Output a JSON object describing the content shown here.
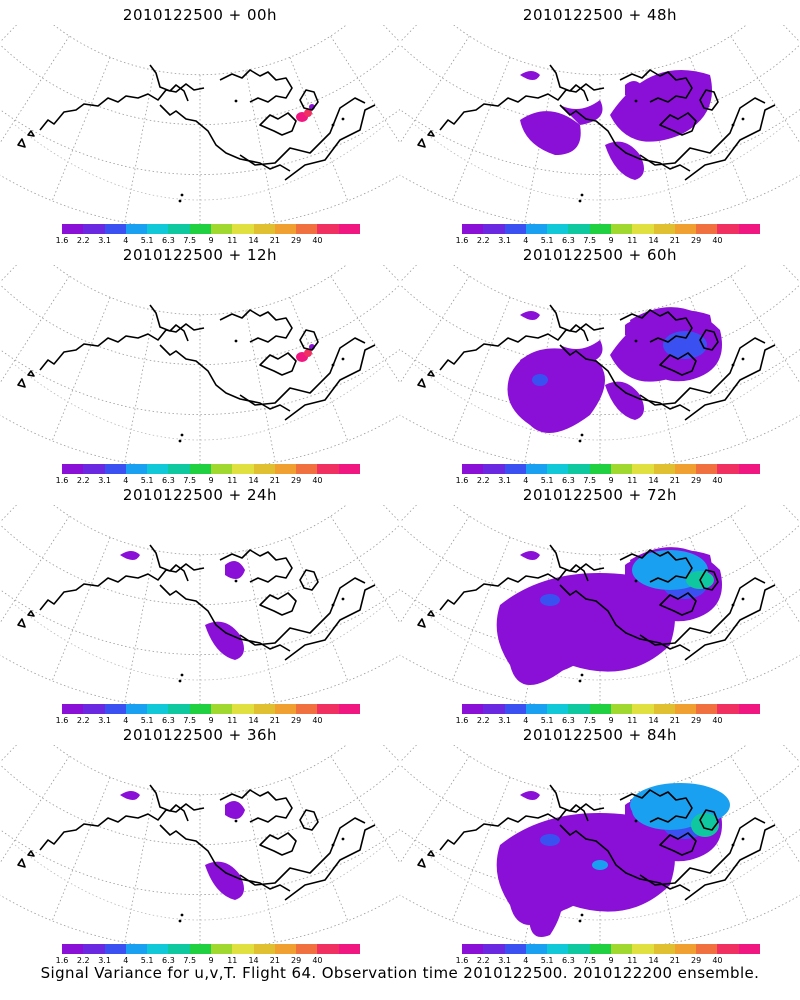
{
  "panels": [
    {
      "title": "2010122500 + 00h",
      "intensity": 0
    },
    {
      "title": "2010122500 + 48h",
      "intensity": 2
    },
    {
      "title": "2010122500 + 12h",
      "intensity": 0
    },
    {
      "title": "2010122500 + 60h",
      "intensity": 3
    },
    {
      "title": "2010122500 + 24h",
      "intensity": 1
    },
    {
      "title": "2010122500 + 72h",
      "intensity": 4
    },
    {
      "title": "2010122500 + 36h",
      "intensity": 1
    },
    {
      "title": "2010122500 + 84h",
      "intensity": 5
    }
  ],
  "colorbar": {
    "labels": [
      "1.6",
      "2.2",
      "3.1",
      "4",
      "5.1",
      "6.3",
      "7.5",
      "9",
      "11",
      "14",
      "21",
      "29",
      "40"
    ],
    "colors": [
      "#8a10d8",
      "#6a28e0",
      "#3a50f0",
      "#1aa0f0",
      "#10c8d8",
      "#10c8a0",
      "#20d040",
      "#a0d830",
      "#e0e040",
      "#e0c030",
      "#f0a030",
      "#f07040",
      "#f03060",
      "#f01880"
    ]
  },
  "caption": "Signal Variance for u,v,T. Flight 64. Observation time 2010122500. 2010122200 ensemble."
}
